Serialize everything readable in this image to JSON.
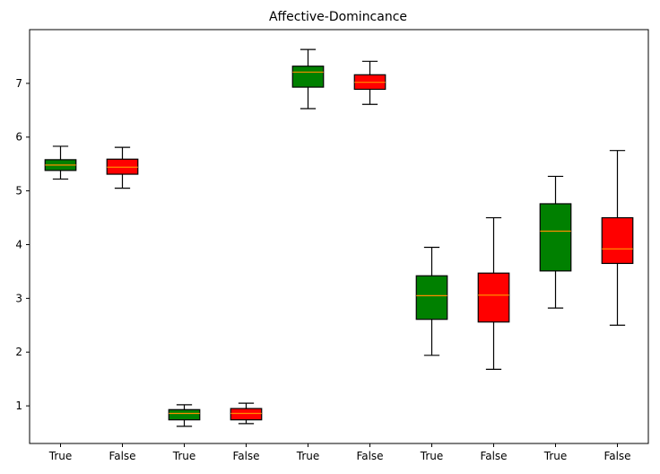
{
  "chart_data": {
    "type": "box",
    "title": "Affective-Domincance",
    "xlabel": "",
    "ylabel": "",
    "categories": [
      "True",
      "False",
      "True",
      "False",
      "True",
      "False",
      "True",
      "False",
      "True",
      "False"
    ],
    "yticks": [
      1,
      2,
      3,
      4,
      5,
      6,
      7
    ],
    "ylim": [
      0.3,
      8.0
    ],
    "grid": false,
    "colors": {
      "True": "#008000",
      "False": "#ff0000",
      "median": "#ff8c00",
      "whisker": "#000000"
    },
    "boxes": [
      {
        "label": "True",
        "whislo": 5.22,
        "q1": 5.38,
        "med": 5.48,
        "q3": 5.58,
        "whishi": 5.83
      },
      {
        "label": "False",
        "whislo": 5.05,
        "q1": 5.31,
        "med": 5.44,
        "q3": 5.59,
        "whishi": 5.81
      },
      {
        "label": "True",
        "whislo": 0.62,
        "q1": 0.74,
        "med": 0.86,
        "q3": 0.93,
        "whishi": 1.02
      },
      {
        "label": "False",
        "whislo": 0.67,
        "q1": 0.74,
        "med": 0.86,
        "q3": 0.95,
        "whishi": 1.05
      },
      {
        "label": "True",
        "whislo": 6.53,
        "q1": 6.93,
        "med": 7.21,
        "q3": 7.32,
        "whishi": 7.63
      },
      {
        "label": "False",
        "whislo": 6.61,
        "q1": 6.89,
        "med": 7.02,
        "q3": 7.16,
        "whishi": 7.41
      },
      {
        "label": "True",
        "whislo": 1.94,
        "q1": 2.61,
        "med": 3.05,
        "q3": 3.42,
        "whishi": 3.95
      },
      {
        "label": "False",
        "whislo": 1.68,
        "q1": 2.56,
        "med": 3.06,
        "q3": 3.47,
        "whishi": 4.5
      },
      {
        "label": "True",
        "whislo": 2.82,
        "q1": 3.51,
        "med": 4.25,
        "q3": 4.76,
        "whishi": 5.27
      },
      {
        "label": "False",
        "whislo": 2.5,
        "q1": 3.65,
        "med": 3.92,
        "q3": 4.5,
        "whishi": 5.75
      }
    ]
  }
}
